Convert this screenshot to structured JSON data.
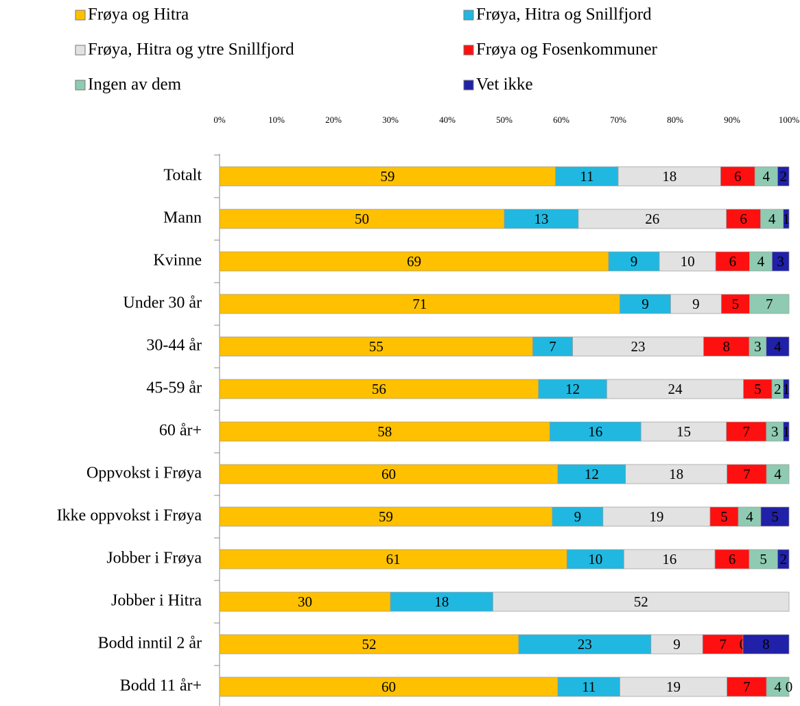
{
  "chart_data": {
    "type": "stacked-percent-bar",
    "categories": [
      "Totalt",
      "Mann",
      "Kvinne",
      "Under 30 år",
      "30-44 år",
      "45-59 år",
      "60 år+",
      "Oppvokst i Frøya",
      "Ikke oppvokst i Frøya",
      "Jobber i Frøya",
      "Jobber i Hitra",
      "Bodd inntil 2 år",
      "Bodd 11 år+"
    ],
    "series": [
      {
        "name": "Frøya og Hitra",
        "color": "#ffc000",
        "values": [
          59,
          50,
          69,
          71,
          55,
          56,
          58,
          60,
          59,
          61,
          30,
          52,
          60
        ]
      },
      {
        "name": "Frøya, Hitra og Snillfjord",
        "color": "#20b8e0",
        "values": [
          11,
          13,
          9,
          9,
          7,
          12,
          16,
          12,
          9,
          10,
          18,
          23,
          11
        ]
      },
      {
        "name": "Frøya, Hitra og ytre Snillfjord",
        "color": "#e2e2e2",
        "values": [
          18,
          26,
          10,
          9,
          23,
          24,
          15,
          18,
          19,
          16,
          52,
          9,
          19
        ]
      },
      {
        "name": "Frøya og Fosenkommuner",
        "color": "#ff1010",
        "values": [
          6,
          6,
          6,
          5,
          8,
          5,
          7,
          7,
          5,
          6,
          null,
          7,
          7
        ]
      },
      {
        "name": "Ingen av dem",
        "color": "#8ecbb2",
        "values": [
          4,
          4,
          4,
          7,
          3,
          2,
          3,
          4,
          4,
          5,
          null,
          0,
          4
        ]
      },
      {
        "name": "Vet ikke",
        "color": "#2020a8",
        "values": [
          2,
          1,
          3,
          null,
          4,
          1,
          1,
          null,
          5,
          2,
          null,
          8,
          0
        ]
      }
    ],
    "xlim": [
      0,
      100
    ],
    "xticks": [
      {
        "value": 0,
        "label": "0%"
      },
      {
        "value": 10,
        "label": "10%"
      },
      {
        "value": 20,
        "label": "20%"
      },
      {
        "value": 30,
        "label": "30%"
      },
      {
        "value": 40,
        "label": "40%"
      },
      {
        "value": 50,
        "label": "50%"
      },
      {
        "value": 60,
        "label": "60%"
      },
      {
        "value": 70,
        "label": "70%"
      },
      {
        "value": 80,
        "label": "80%"
      },
      {
        "value": 90,
        "label": "90%"
      },
      {
        "value": 100,
        "label": "100%"
      }
    ],
    "legend": "top"
  }
}
